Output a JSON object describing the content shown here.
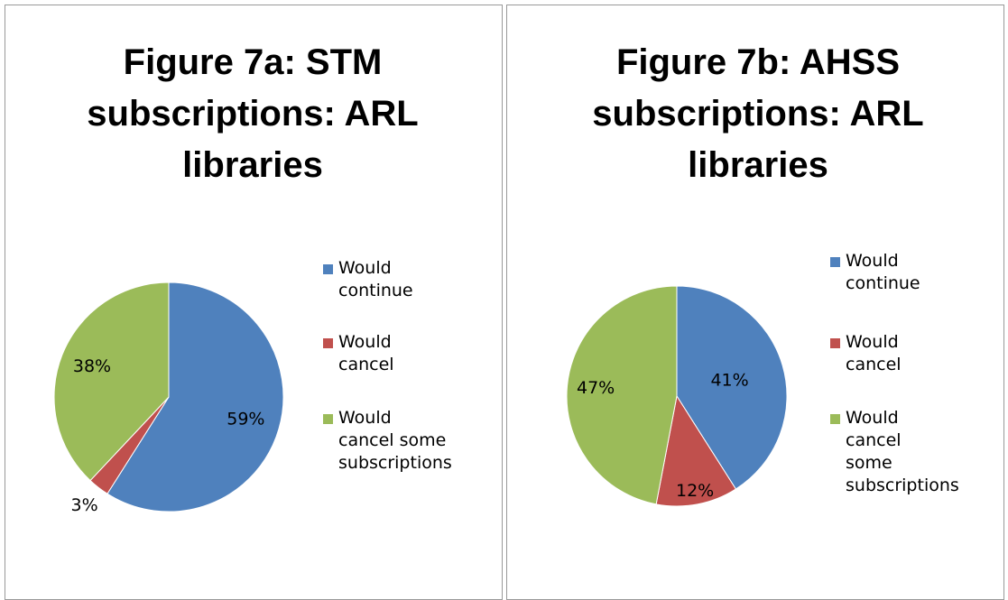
{
  "chart_data": [
    {
      "type": "pie",
      "title": "Figure 7a: STM subscriptions: ARL libraries",
      "categories": [
        "Would continue",
        "Would cancel",
        "Would cancel some subscriptions"
      ],
      "values": [
        59,
        3,
        38
      ],
      "value_labels": [
        "59%",
        "3%",
        "38%"
      ],
      "colors": [
        "#4f81bd",
        "#c0504d",
        "#9bbb59"
      ],
      "legend": "right"
    },
    {
      "type": "pie",
      "title": "Figure 7b: AHSS subscriptions: ARL libraries",
      "categories": [
        "Would continue",
        "Would cancel",
        "Would cancel some subscriptions"
      ],
      "values": [
        41,
        12,
        47
      ],
      "value_labels": [
        "41%",
        "12%",
        "47%"
      ],
      "colors": [
        "#4f81bd",
        "#c0504d",
        "#9bbb59"
      ],
      "legend": "right"
    }
  ]
}
